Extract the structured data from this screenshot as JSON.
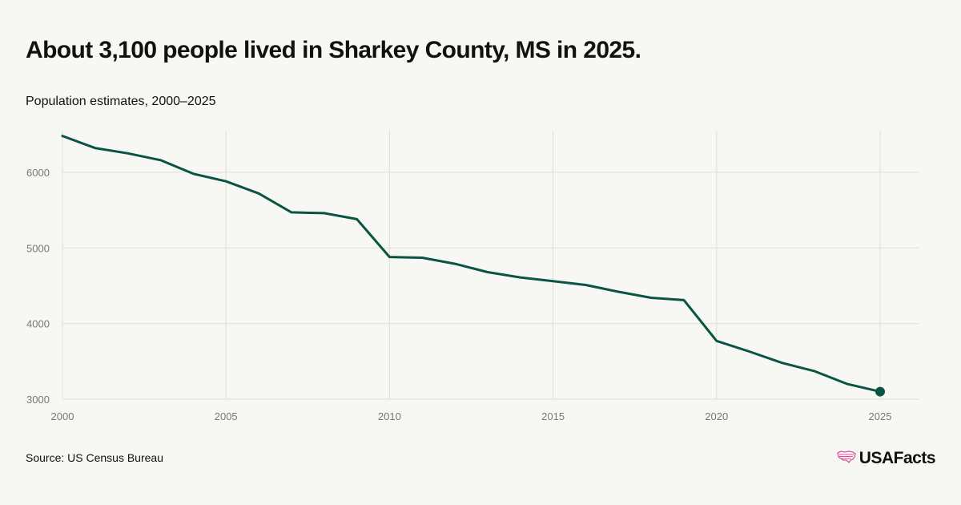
{
  "header": {
    "title": "About 3,100 people lived in Sharkey County, MS in 2025.",
    "subtitle": "Population estimates, 2000–2025"
  },
  "footer": {
    "source": "Source: US Census Bureau",
    "brand": "USAFacts",
    "brand_icon": "us-map-flag-icon"
  },
  "colors": {
    "line": "#0a5443",
    "grid": "#dededa",
    "tick_text": "#777777",
    "brand_icon": "#e0509c"
  },
  "chart_data": {
    "type": "line",
    "title": "About 3,100 people lived in Sharkey County, MS in 2025.",
    "subtitle": "Population estimates, 2000–2025",
    "xlabel": "",
    "ylabel": "",
    "x": [
      2000,
      2001,
      2002,
      2003,
      2004,
      2005,
      2006,
      2007,
      2008,
      2009,
      2010,
      2011,
      2012,
      2013,
      2014,
      2015,
      2016,
      2017,
      2018,
      2019,
      2020,
      2021,
      2022,
      2023,
      2024,
      2025
    ],
    "series": [
      {
        "values": [
          6480,
          6320,
          6250,
          6160,
          5980,
          5880,
          5720,
          5470,
          5460,
          5380,
          4880,
          4870,
          4790,
          4680,
          4610,
          4560,
          4510,
          4420,
          4340,
          4310,
          3770,
          3630,
          3480,
          3370,
          3200,
          3100
        ]
      }
    ],
    "x_ticks": [
      "2000",
      "2005",
      "2010",
      "2015",
      "2020",
      "2025"
    ],
    "y_ticks": [
      "3000",
      "4000",
      "5000",
      "6000"
    ],
    "xlim": [
      2000,
      2026.2
    ],
    "ylim": [
      3000,
      6550
    ],
    "grid": true,
    "legend": "none",
    "end_marker": true
  }
}
